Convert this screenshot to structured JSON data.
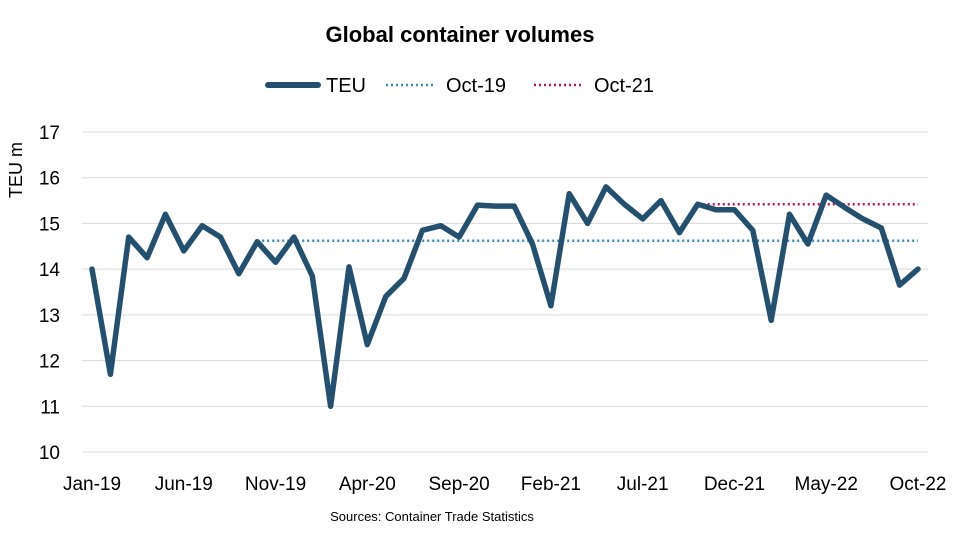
{
  "chart_data": {
    "type": "line",
    "title": "Global container volumes",
    "ylabel": "TEU m",
    "xlabel": "",
    "source": "Sources: Container Trade Statistics",
    "ylim": [
      10,
      17
    ],
    "yticks": [
      10,
      11,
      12,
      13,
      14,
      15,
      16,
      17
    ],
    "grid": true,
    "legend_position": "top",
    "x_tick_labels": [
      "Jan-19",
      "Jun-19",
      "Nov-19",
      "Apr-20",
      "Sep-20",
      "Feb-21",
      "Jul-21",
      "Dec-21",
      "May-22",
      "Oct-22"
    ],
    "x": [
      "Jan-19",
      "Feb-19",
      "Mar-19",
      "Apr-19",
      "May-19",
      "Jun-19",
      "Jul-19",
      "Aug-19",
      "Sep-19",
      "Oct-19",
      "Nov-19",
      "Dec-19",
      "Jan-20",
      "Feb-20",
      "Mar-20",
      "Apr-20",
      "May-20",
      "Jun-20",
      "Jul-20",
      "Aug-20",
      "Sep-20",
      "Oct-20",
      "Nov-20",
      "Dec-20",
      "Jan-21",
      "Feb-21",
      "Mar-21",
      "Apr-21",
      "May-21",
      "Jun-21",
      "Jul-21",
      "Aug-21",
      "Sep-21",
      "Oct-21",
      "Nov-21",
      "Dec-21",
      "Jan-22",
      "Feb-22",
      "Mar-22",
      "Apr-22",
      "May-22",
      "Jun-22",
      "Jul-22",
      "Aug-22",
      "Sep-22",
      "Oct-22"
    ],
    "series": [
      {
        "name": "TEU",
        "style": "solid",
        "color": "#24506f",
        "values": [
          14.0,
          11.7,
          14.7,
          14.25,
          15.2,
          14.4,
          14.95,
          14.7,
          13.9,
          14.6,
          14.15,
          14.7,
          13.85,
          11.0,
          14.05,
          12.35,
          13.4,
          13.8,
          14.85,
          14.95,
          14.7,
          15.4,
          15.38,
          15.38,
          14.55,
          13.2,
          15.65,
          15.0,
          15.8,
          15.42,
          15.1,
          15.5,
          14.8,
          15.42,
          15.3,
          15.3,
          14.85,
          12.88,
          15.2,
          14.55,
          15.62,
          15.35,
          15.1,
          14.9,
          13.65,
          14.0
        ]
      },
      {
        "name": "Oct-19",
        "style": "dotted",
        "color": "#3a8bbf",
        "start": "Oct-19",
        "end": "Oct-22",
        "value": 14.62
      },
      {
        "name": "Oct-21",
        "style": "dotted",
        "color": "#c0154f",
        "start": "Oct-21",
        "end": "Oct-22",
        "value": 15.42
      }
    ]
  }
}
